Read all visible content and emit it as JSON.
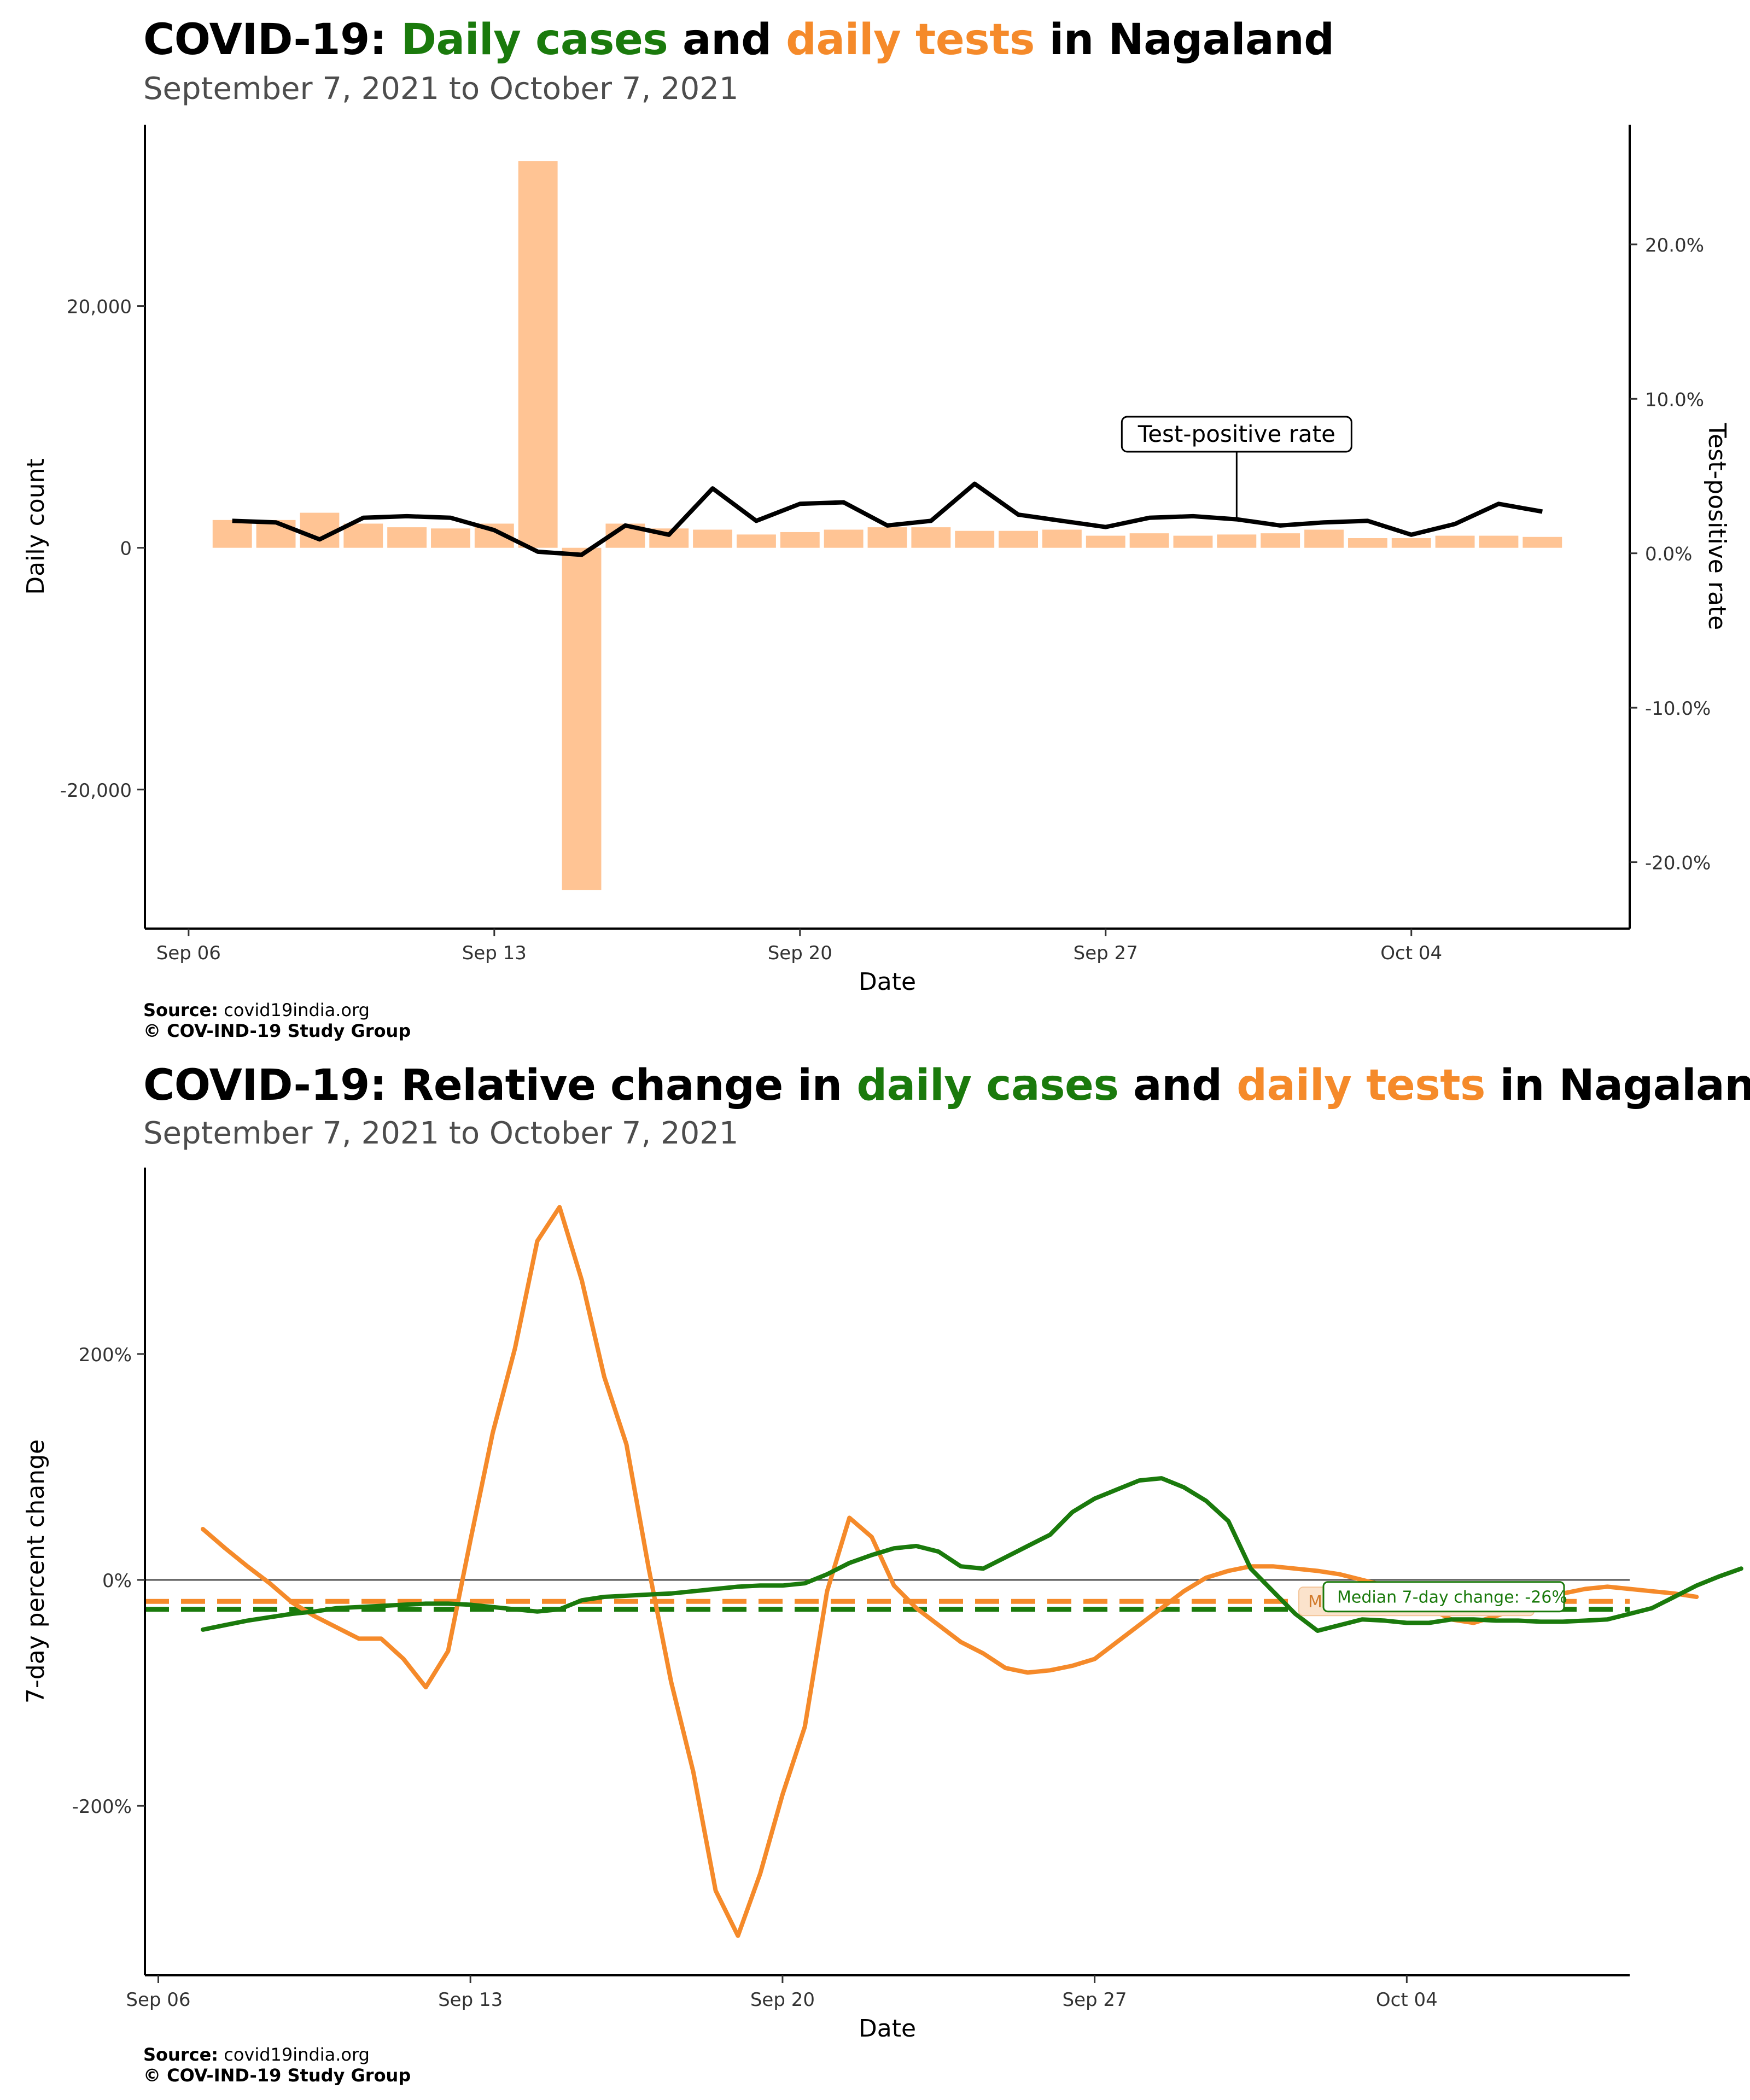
{
  "colors": {
    "cases": "#1a7a0c",
    "tests": "#f58a2a",
    "bars": "#ffc494",
    "rate_line": "#000000"
  },
  "chart_data": [
    {
      "type": "bar",
      "title_parts": [
        "COVID-19:",
        "Daily cases",
        "and",
        "daily tests",
        "in Nagaland"
      ],
      "subtitle": "September  7, 2021 to October  7, 2021",
      "xlabel": "Date",
      "ylabel": "Daily count",
      "y2label": "Test-positive rate",
      "x_ticks": [
        "Sep 06",
        "Sep 13",
        "Sep 20",
        "Sep 27",
        "Oct 04"
      ],
      "x_tick_dates": [
        "2021-09-06",
        "2021-09-13",
        "2021-09-20",
        "2021-09-27",
        "2021-10-04"
      ],
      "xlim": [
        "2021-09-05",
        "2021-10-09"
      ],
      "ylim": [
        -31500,
        35000
      ],
      "y_ticks": [
        20000,
        0,
        -20000
      ],
      "y_tick_labels": [
        "20,000",
        "0",
        "-20,000"
      ],
      "y2lim": [
        -0.243,
        0.2775
      ],
      "y2_ticks": [
        0.2,
        0.1,
        0.0,
        -0.1,
        -0.2
      ],
      "y2_tick_labels": [
        "20.0%",
        "10.0%",
        "0.0%",
        "-10.0%",
        "-20.0%"
      ],
      "grid": false,
      "annotation": {
        "text": "Test-positive rate",
        "date": "2021-09-30"
      },
      "dates": [
        "2021-09-07",
        "2021-09-08",
        "2021-09-09",
        "2021-09-10",
        "2021-09-11",
        "2021-09-12",
        "2021-09-13",
        "2021-09-14",
        "2021-09-15",
        "2021-09-16",
        "2021-09-17",
        "2021-09-18",
        "2021-09-19",
        "2021-09-20",
        "2021-09-21",
        "2021-09-22",
        "2021-09-23",
        "2021-09-24",
        "2021-09-25",
        "2021-09-26",
        "2021-09-27",
        "2021-09-28",
        "2021-09-29",
        "2021-09-30",
        "2021-10-01",
        "2021-10-02",
        "2021-10-03",
        "2021-10-04",
        "2021-10-05",
        "2021-10-06",
        "2021-10-07"
      ],
      "series": [
        {
          "kind": "bars",
          "values": [
            2300,
            2300,
            2900,
            2000,
            1700,
            1600,
            2000,
            32000,
            -28300,
            2000,
            1600,
            1500,
            1100,
            1300,
            1500,
            1700,
            1700,
            1400,
            1400,
            1500,
            1000,
            1200,
            1000,
            1100,
            1200,
            1500,
            800,
            800,
            1000,
            1000,
            900
          ]
        },
        {
          "kind": "line",
          "values": [
            0.021,
            0.02,
            0.009,
            0.023,
            0.024,
            0.023,
            0.015,
            0.001,
            -0.001,
            0.018,
            0.012,
            0.042,
            0.021,
            0.032,
            0.033,
            0.018,
            0.021,
            0.045,
            0.025,
            0.021,
            0.017,
            0.023,
            0.024,
            0.022,
            0.018,
            0.02,
            0.021,
            0.012,
            0.019,
            0.032,
            0.027
          ]
        }
      ]
    },
    {
      "type": "line",
      "title_parts": [
        "COVID-19: Relative change in",
        "daily cases",
        "and",
        "daily tests",
        "in Nagaland"
      ],
      "subtitle": "September  7, 2021 to October  7, 2021",
      "xlabel": "Date",
      "ylabel": "7-day percent change",
      "x_ticks": [
        "Sep 06",
        "Sep 13",
        "Sep 20",
        "Sep 27",
        "Oct 04"
      ],
      "x_tick_dates": [
        "2021-09-06",
        "2021-09-13",
        "2021-09-20",
        "2021-09-27",
        "2021-10-04"
      ],
      "xlim": [
        "2021-09-05.7",
        "2021-10-09"
      ],
      "ylim": [
        -350,
        365
      ],
      "y_ticks": [
        200,
        0,
        -200
      ],
      "y_tick_labels": [
        "200%",
        "0%",
        "-200%"
      ],
      "grid": false,
      "medians": [
        {
          "series": "tests",
          "value": -19,
          "label": "Median 7-day change: -19%"
        },
        {
          "series": "cases",
          "value": -26,
          "label": "Median 7-day change: -26%"
        }
      ],
      "dates_note": "values sampled twice per day",
      "start_date": "2021-09-07",
      "step_days": 0.5,
      "series": [
        {
          "key": "tests",
          "values": [
            45,
            28,
            12,
            -3,
            -20,
            -32,
            -42,
            -52,
            -52,
            -70,
            -95,
            -63,
            35,
            130,
            205,
            300,
            330,
            265,
            180,
            120,
            10,
            -90,
            -170,
            -275,
            -315,
            -260,
            -190,
            -130,
            -10,
            55,
            38,
            -5,
            -25,
            -40,
            -55,
            -65,
            -78,
            -82,
            -80,
            -76,
            -70,
            -55,
            -40,
            -25,
            -10,
            2,
            8,
            12,
            12,
            10,
            8,
            5,
            0,
            -5,
            -15,
            -25,
            -35,
            -38,
            -32,
            -25,
            -18,
            -12,
            -8,
            -6,
            -8,
            -10,
            -12,
            -15
          ]
        },
        {
          "key": "cases",
          "values": [
            -44,
            -40,
            -36,
            -33,
            -30,
            -28,
            -25,
            -24,
            -23,
            -22,
            -21,
            -21,
            -22,
            -24,
            -26,
            -28,
            -26,
            -18,
            -15,
            -14,
            -13,
            -12,
            -10,
            -8,
            -6,
            -5,
            -5,
            -3,
            5,
            15,
            22,
            28,
            30,
            25,
            12,
            10,
            20,
            30,
            40,
            60,
            72,
            80,
            88,
            90,
            82,
            70,
            52,
            10,
            -10,
            -30,
            -45,
            -40,
            -35,
            -36,
            -38,
            -38,
            -35,
            -35,
            -36,
            -36,
            -37,
            -37,
            -36,
            -35,
            -30,
            -25,
            -15,
            -5,
            3,
            10
          ]
        }
      ]
    }
  ],
  "footer": [
    {
      "source_label": "Source:",
      "source_text": "covid19india.org",
      "copyright": "© COV-IND-19 Study Group"
    },
    {
      "source_label": "Source:",
      "source_text": "covid19india.org",
      "copyright": "© COV-IND-19 Study Group"
    }
  ]
}
